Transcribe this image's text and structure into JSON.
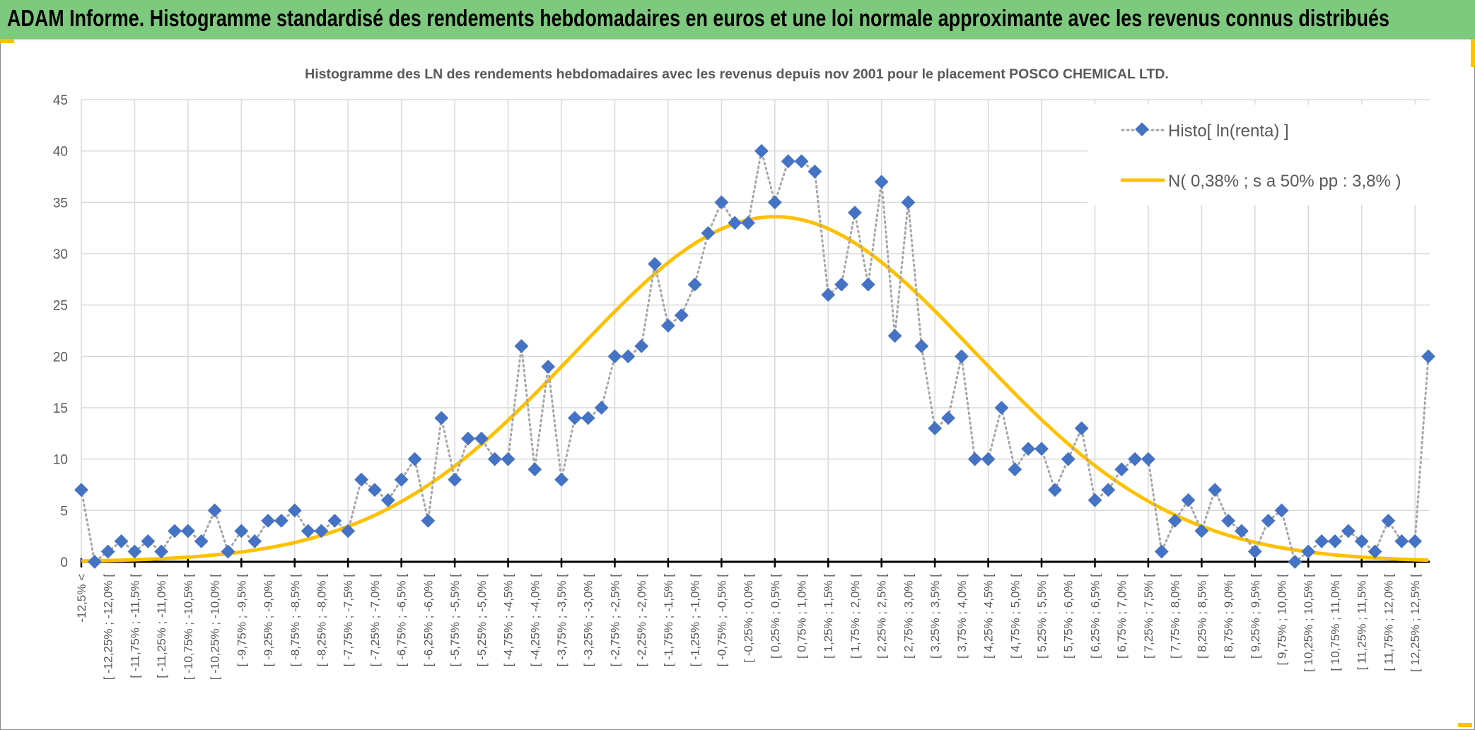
{
  "banner": {
    "title": "ADAM Informe. Histogramme standardisé des rendements hebdomadaires en euros et une loi normale approximante avec les revenus connus distribués"
  },
  "colors": {
    "banner": "#7dc97d",
    "series": "#4472c4",
    "curve": "#ffc000",
    "accent": "#ffc000"
  },
  "chart_data": {
    "type": "line",
    "title": "Histogramme des LN des rendements hebdomadaires avec les revenus depuis nov 2001 pour le placement POSCO CHEMICAL  LTD.",
    "xlabel": "",
    "ylabel": "",
    "ylim": [
      0,
      45
    ],
    "yticks": [
      "0",
      "5",
      "10",
      "15",
      "20",
      "25",
      "30",
      "35",
      "40",
      "45"
    ],
    "grid": true,
    "legend_position": "top-right",
    "tick_labels": [
      "-12,5% <",
      "[ -12,25% ; -12,0% [",
      "[ -11,75% ; -11,5% [",
      "[ -11,25% ; -11,0% [",
      "[ -10,75% ; -10,5% [",
      "[ -10,25% ; -10,0% [",
      "[ -9,75% ; -9,5% [",
      "[ -9,25% ; -9,0% [",
      "[ -8,75% ; -8,5% [",
      "[ -8,25% ; -8,0% [",
      "[ -7,75% ; -7,5% [",
      "[ -7,25% ; -7,0% [",
      "[ -6,75% ; -6,5% [",
      "[ -6,25% ; -6,0% [",
      "[ -5,75% ; -5,5% [",
      "[ -5,25% ; -5,0% [",
      "[ -4,75% ; -4,5% [",
      "[ -4,25% ; -4,0% [",
      "[ -3,75% ; -3,5% [",
      "[ -3,25% ; -3,0% [",
      "[ -2,75% ; -2,5% [",
      "[ -2,25% ; -2,0% [",
      "[ -1,75% ; -1,5% [",
      "[ -1,25% ; -1,0% [",
      "[ -0,75% ; -0,5% [",
      "[ -0,25% ; 0,0% [",
      "[ 0,25% ; 0,5% [",
      "[ 0,75% ; 1,0% [",
      "[ 1,25% ; 1,5% [",
      "[ 1,75% ; 2,0% [",
      "[ 2,25% ; 2,5% [",
      "[ 2,75% ; 3,0% [",
      "[ 3,25% ; 3,5% [",
      "[ 3,75% ; 4,0% [",
      "[ 4,25% ; 4,5% [",
      "[ 4,75% ; 5,0% [",
      "[ 5,25% ; 5,5% [",
      "[ 5,75% ; 6,0% [",
      "[ 6,25% ; 6,5% [",
      "[ 6,75% ; 7,0% [",
      "[ 7,25% ; 7,5% [",
      "[ 7,75% ; 8,0% [",
      "[ 8,25% ; 8,5% [",
      "[ 8,75% ; 9,0% [",
      "[ 9,25% ; 9,5% [",
      "[ 9,75% ; 10,0% [",
      "[ 10,25% ; 10,5% [",
      "[ 10,75% ; 11,0% [",
      "[ 11,25% ; 11,5% [",
      "[ 11,75% ; 12,0% [",
      "[ 12,25% ; 12,5% ["
    ],
    "series": [
      {
        "name": "Histo[ ln(renta) ]",
        "style": "dotted-line-diamond-markers",
        "values": [
          7,
          0,
          1,
          2,
          1,
          2,
          1,
          3,
          3,
          2,
          5,
          1,
          3,
          2,
          4,
          4,
          5,
          3,
          3,
          4,
          3,
          8,
          7,
          6,
          8,
          10,
          4,
          14,
          8,
          12,
          12,
          10,
          10,
          21,
          9,
          19,
          8,
          14,
          14,
          15,
          20,
          20,
          21,
          29,
          23,
          24,
          27,
          32,
          35,
          33,
          33,
          40,
          35,
          39,
          39,
          38,
          26,
          27,
          34,
          27,
          37,
          22,
          35,
          21,
          13,
          14,
          20,
          10,
          10,
          15,
          9,
          11,
          11,
          7,
          10,
          13,
          6,
          7,
          9,
          10,
          10,
          1,
          4,
          6,
          3,
          7,
          4,
          3,
          1,
          4,
          5,
          0,
          1,
          2,
          2,
          3,
          2,
          1,
          4,
          2,
          2,
          20
        ]
      },
      {
        "name": "N( 0,38% ; s a 50% pp : 3,8% )",
        "style": "solid-curve",
        "normal": {
          "mean_pct": 0.38,
          "sigma_pct": 3.75,
          "peak": 33.6
        }
      }
    ],
    "bins": {
      "first_center_pct": -12.625,
      "width_pct": 0.25,
      "count": 102
    }
  }
}
